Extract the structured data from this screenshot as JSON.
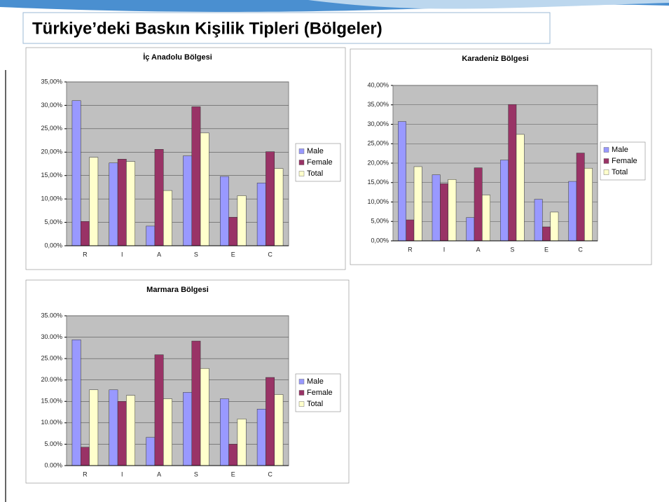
{
  "title": "Türkiye’deki Baskın Kişilik Tipleri (Bölgeler)",
  "chart_data": [
    {
      "type": "bar",
      "title": "İç Anadolu Bölgesi",
      "categories": [
        "R",
        "I",
        "A",
        "S",
        "E",
        "C"
      ],
      "series": [
        {
          "name": "Male",
          "color": "#9999ff",
          "values": [
            31.0,
            17.7,
            4.2,
            19.2,
            14.8,
            13.4
          ]
        },
        {
          "name": "Female",
          "color": "#993366",
          "values": [
            5.2,
            18.5,
            20.6,
            29.7,
            6.1,
            20.1
          ]
        },
        {
          "name": "Total",
          "color": "#ffffcc",
          "values": [
            18.9,
            18.0,
            11.8,
            24.1,
            10.7,
            16.5
          ]
        }
      ],
      "ylim": [
        0,
        35
      ],
      "yticks": [
        {
          "value": 0,
          "label": "0,00%"
        },
        {
          "value": 5,
          "label": "5,00%"
        },
        {
          "value": 10,
          "label": "10,00%"
        },
        {
          "value": 15,
          "label": "15,00%"
        },
        {
          "value": 20,
          "label": "20,00%"
        },
        {
          "value": 25,
          "label": "25,00%"
        },
        {
          "value": 30,
          "label": "30,00%"
        },
        {
          "value": 35,
          "label": "35,00%"
        }
      ],
      "grid": true,
      "legend": "right"
    },
    {
      "type": "bar",
      "title": "Karadeniz Bölgesi",
      "categories": [
        "R",
        "I",
        "A",
        "S",
        "E",
        "C"
      ],
      "series": [
        {
          "name": "Male",
          "color": "#9999ff",
          "values": [
            30.7,
            17.0,
            6.0,
            20.8,
            10.7,
            15.3
          ]
        },
        {
          "name": "Female",
          "color": "#993366",
          "values": [
            5.4,
            14.7,
            18.8,
            35.1,
            3.6,
            22.6
          ]
        },
        {
          "name": "Total",
          "color": "#ffffcc",
          "values": [
            19.1,
            15.8,
            11.8,
            27.4,
            7.4,
            18.7
          ]
        }
      ],
      "ylim": [
        0,
        40
      ],
      "yticks": [
        {
          "value": 0,
          "label": "0,00%"
        },
        {
          "value": 5,
          "label": "5,00%"
        },
        {
          "value": 10,
          "label": "10,00%"
        },
        {
          "value": 15,
          "label": "15,00%"
        },
        {
          "value": 20,
          "label": "20,00%"
        },
        {
          "value": 25,
          "label": "25,00%"
        },
        {
          "value": 30,
          "label": "30,00%"
        },
        {
          "value": 35,
          "label": "35,00%"
        },
        {
          "value": 40,
          "label": "40,00%"
        }
      ],
      "grid": true,
      "legend": "right"
    },
    {
      "type": "bar",
      "title": "Marmara Bölgesi",
      "categories": [
        "R",
        "I",
        "A",
        "S",
        "E",
        "C"
      ],
      "series": [
        {
          "name": "Male",
          "color": "#9999ff",
          "values": [
            29.4,
            17.7,
            6.6,
            17.1,
            15.6,
            13.2
          ]
        },
        {
          "name": "Female",
          "color": "#993366",
          "values": [
            4.3,
            15.0,
            25.9,
            29.1,
            5.0,
            20.6
          ]
        },
        {
          "name": "Total",
          "color": "#ffffcc",
          "values": [
            17.7,
            16.4,
            15.6,
            22.7,
            10.9,
            16.6
          ]
        }
      ],
      "ylim": [
        0,
        35
      ],
      "yticks": [
        {
          "value": 0,
          "label": "0.00%"
        },
        {
          "value": 5,
          "label": "5.00%"
        },
        {
          "value": 10,
          "label": "10.00%"
        },
        {
          "value": 15,
          "label": "15.00%"
        },
        {
          "value": 20,
          "label": "20.00%"
        },
        {
          "value": 25,
          "label": "25.00%"
        },
        {
          "value": 30,
          "label": "30.00%"
        },
        {
          "value": 35,
          "label": "35.00%"
        }
      ],
      "grid": true,
      "legend": "right"
    }
  ]
}
